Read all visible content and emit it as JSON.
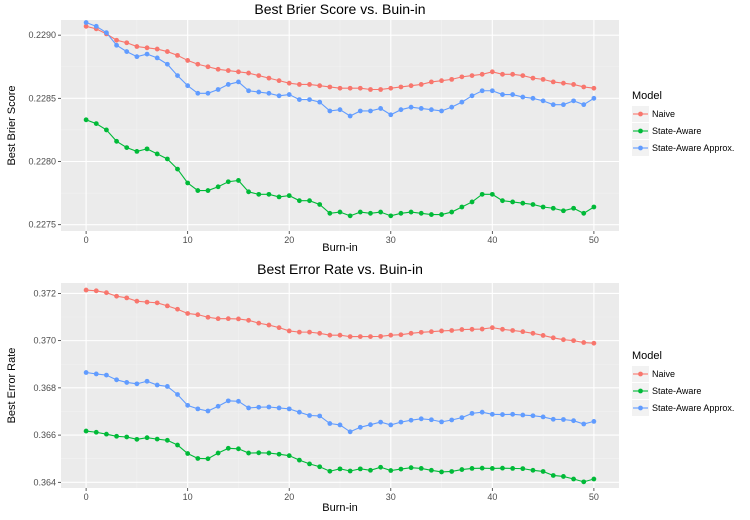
{
  "chart_data": [
    {
      "type": "line",
      "title": "Best Brier Score vs. Buin-in",
      "xlabel": "Burn-in",
      "ylabel": "Best Brier Score",
      "xlim": [
        0,
        50
      ],
      "ylim": [
        0.22745,
        0.22912
      ],
      "xticks": [
        0,
        10,
        20,
        30,
        40,
        50
      ],
      "yticks": [
        0.2275,
        0.228,
        0.2285,
        0.229
      ],
      "ytick_labels": [
        "0.2275",
        "0.2280",
        "0.2285",
        "0.2290"
      ],
      "legend_title": "Model",
      "legend_position": "right",
      "background": "#ebebeb",
      "grid": true,
      "x": [
        0,
        1,
        2,
        3,
        4,
        5,
        6,
        7,
        8,
        9,
        10,
        11,
        12,
        13,
        14,
        15,
        16,
        17,
        18,
        19,
        20,
        21,
        22,
        23,
        24,
        25,
        26,
        27,
        28,
        29,
        30,
        31,
        32,
        33,
        34,
        35,
        36,
        37,
        38,
        39,
        40,
        41,
        42,
        43,
        44,
        45,
        46,
        47,
        48,
        49,
        50
      ],
      "series": [
        {
          "name": "Naive",
          "color": "#f8766d",
          "values": [
            0.22907,
            0.22905,
            0.22901,
            0.22896,
            0.22894,
            0.22891,
            0.2289,
            0.22889,
            0.22887,
            0.22884,
            0.2288,
            0.22877,
            0.22875,
            0.22873,
            0.22872,
            0.22871,
            0.2287,
            0.22868,
            0.22866,
            0.22864,
            0.22862,
            0.22861,
            0.22861,
            0.2286,
            0.22859,
            0.22858,
            0.22858,
            0.22858,
            0.22857,
            0.22857,
            0.22858,
            0.22859,
            0.2286,
            0.22861,
            0.22863,
            0.22864,
            0.22865,
            0.22867,
            0.22868,
            0.22869,
            0.22871,
            0.22869,
            0.22869,
            0.22868,
            0.22866,
            0.22865,
            0.22863,
            0.22862,
            0.22861,
            0.22859,
            0.22858
          ]
        },
        {
          "name": "State-Aware",
          "color": "#00ba38",
          "values": [
            0.22833,
            0.2283,
            0.22825,
            0.22816,
            0.22811,
            0.22808,
            0.2281,
            0.22806,
            0.22802,
            0.22794,
            0.22783,
            0.22777,
            0.22777,
            0.2278,
            0.22784,
            0.22785,
            0.22776,
            0.22774,
            0.22774,
            0.22772,
            0.22773,
            0.22769,
            0.22769,
            0.22766,
            0.22759,
            0.2276,
            0.22757,
            0.2276,
            0.22759,
            0.2276,
            0.22757,
            0.22759,
            0.2276,
            0.22759,
            0.22758,
            0.22758,
            0.2276,
            0.22764,
            0.22768,
            0.22774,
            0.22774,
            0.22769,
            0.22768,
            0.22767,
            0.22766,
            0.22764,
            0.22763,
            0.22761,
            0.22763,
            0.22759,
            0.22764
          ]
        },
        {
          "name": "State-Aware Approx.",
          "color": "#619cff",
          "values": [
            0.2291,
            0.22907,
            0.22902,
            0.22892,
            0.22887,
            0.22883,
            0.22885,
            0.22882,
            0.22877,
            0.22868,
            0.2286,
            0.22854,
            0.22854,
            0.22857,
            0.22861,
            0.22863,
            0.22856,
            0.22855,
            0.22854,
            0.22852,
            0.22853,
            0.22849,
            0.22849,
            0.22847,
            0.2284,
            0.22841,
            0.22836,
            0.2284,
            0.2284,
            0.22842,
            0.22837,
            0.22841,
            0.22843,
            0.22842,
            0.22841,
            0.2284,
            0.22843,
            0.22847,
            0.22852,
            0.22856,
            0.22856,
            0.22853,
            0.22853,
            0.22851,
            0.2285,
            0.22848,
            0.22845,
            0.22845,
            0.22848,
            0.22845,
            0.2285
          ]
        }
      ]
    },
    {
      "type": "line",
      "title": "Best Error Rate vs. Buin-in",
      "xlabel": "Burn-in",
      "ylabel": "Best Error Rate",
      "xlim": [
        0,
        50
      ],
      "ylim": [
        0.36376,
        0.37244
      ],
      "xticks": [
        0,
        10,
        20,
        30,
        40,
        50
      ],
      "yticks": [
        0.364,
        0.366,
        0.368,
        0.37,
        0.372
      ],
      "ytick_labels": [
        "0.364",
        "0.366",
        "0.368",
        "0.370",
        "0.372"
      ],
      "legend_title": "Model",
      "legend_position": "right",
      "background": "#ebebeb",
      "grid": true,
      "x": [
        0,
        1,
        2,
        3,
        4,
        5,
        6,
        7,
        8,
        9,
        10,
        11,
        12,
        13,
        14,
        15,
        16,
        17,
        18,
        19,
        20,
        21,
        22,
        23,
        24,
        25,
        26,
        27,
        28,
        29,
        30,
        31,
        32,
        33,
        34,
        35,
        36,
        37,
        38,
        39,
        40,
        41,
        42,
        43,
        44,
        45,
        46,
        47,
        48,
        49,
        50
      ],
      "series": [
        {
          "name": "Naive",
          "color": "#f8766d",
          "values": [
            0.37214,
            0.37211,
            0.37203,
            0.37188,
            0.37181,
            0.37167,
            0.37163,
            0.3716,
            0.37147,
            0.37133,
            0.37115,
            0.3711,
            0.37099,
            0.37093,
            0.37093,
            0.37092,
            0.37086,
            0.37074,
            0.37066,
            0.37055,
            0.37041,
            0.37036,
            0.37036,
            0.37031,
            0.37023,
            0.37023,
            0.37017,
            0.37017,
            0.37017,
            0.37018,
            0.37023,
            0.37025,
            0.37031,
            0.37035,
            0.37038,
            0.37041,
            0.37043,
            0.37047,
            0.37048,
            0.37049,
            0.37055,
            0.37048,
            0.37043,
            0.37038,
            0.37031,
            0.37022,
            0.37012,
            0.37004,
            0.37,
            0.36992,
            0.36989
          ]
        },
        {
          "name": "State-Aware",
          "color": "#00ba38",
          "values": [
            0.36617,
            0.36612,
            0.36604,
            0.36595,
            0.36592,
            0.36582,
            0.36589,
            0.36583,
            0.36578,
            0.36558,
            0.36522,
            0.36501,
            0.365,
            0.36524,
            0.36544,
            0.36542,
            0.36524,
            0.36525,
            0.36524,
            0.36519,
            0.36513,
            0.36494,
            0.36478,
            0.36466,
            0.36447,
            0.36457,
            0.36448,
            0.36457,
            0.36451,
            0.36464,
            0.3645,
            0.36456,
            0.36462,
            0.36459,
            0.36451,
            0.36444,
            0.36446,
            0.36454,
            0.36459,
            0.3646,
            0.36459,
            0.3646,
            0.36459,
            0.36458,
            0.36451,
            0.36446,
            0.36429,
            0.36425,
            0.36414,
            0.36402,
            0.36414
          ]
        },
        {
          "name": "State-Aware Approx.",
          "color": "#619cff",
          "values": [
            0.36865,
            0.36859,
            0.36854,
            0.36834,
            0.36823,
            0.36817,
            0.36828,
            0.36812,
            0.36806,
            0.36772,
            0.36726,
            0.36711,
            0.36702,
            0.36722,
            0.36745,
            0.36743,
            0.36715,
            0.36718,
            0.36719,
            0.36715,
            0.36711,
            0.36697,
            0.36683,
            0.36681,
            0.36649,
            0.36643,
            0.36614,
            0.36633,
            0.36644,
            0.36655,
            0.36643,
            0.36655,
            0.36663,
            0.36669,
            0.36665,
            0.36656,
            0.36664,
            0.36674,
            0.36692,
            0.36697,
            0.36688,
            0.36687,
            0.36688,
            0.36685,
            0.36682,
            0.36677,
            0.36667,
            0.36666,
            0.36661,
            0.36647,
            0.36658
          ]
        }
      ]
    }
  ]
}
